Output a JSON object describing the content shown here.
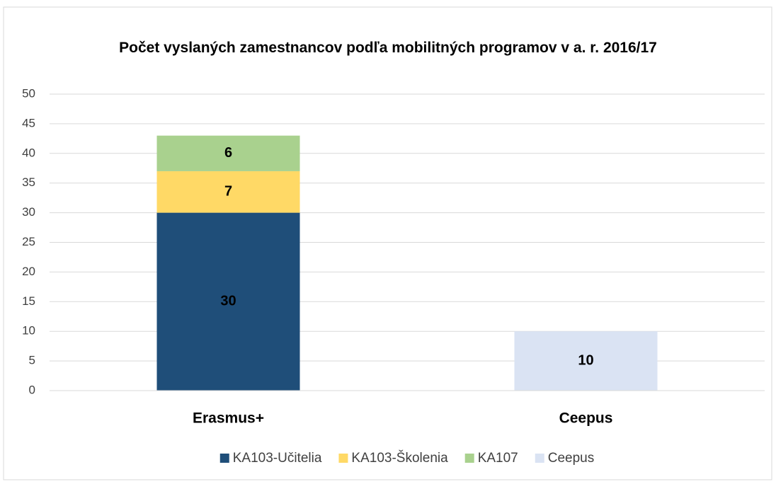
{
  "chart_data": {
    "type": "bar",
    "stacked": true,
    "title": "Počet vyslaných zamestnancov podľa mobilitných programov v a. r. 2016/17",
    "categories": [
      "Erasmus+",
      "Ceepus"
    ],
    "series": [
      {
        "name": "KA103-Učitelia",
        "color": "#1f4e79",
        "values": [
          30,
          null
        ]
      },
      {
        "name": "KA103-Školenia",
        "color": "#ffd966",
        "values": [
          7,
          null
        ]
      },
      {
        "name": "KA107",
        "color": "#a9d18e",
        "values": [
          6,
          null
        ]
      },
      {
        "name": "Ceepus",
        "color": "#dae3f3",
        "values": [
          null,
          10
        ]
      }
    ],
    "ylim": [
      0,
      50
    ],
    "yticks": [
      0,
      5,
      10,
      15,
      20,
      25,
      30,
      35,
      40,
      45,
      50
    ],
    "grid": true,
    "legend": "bottom"
  }
}
